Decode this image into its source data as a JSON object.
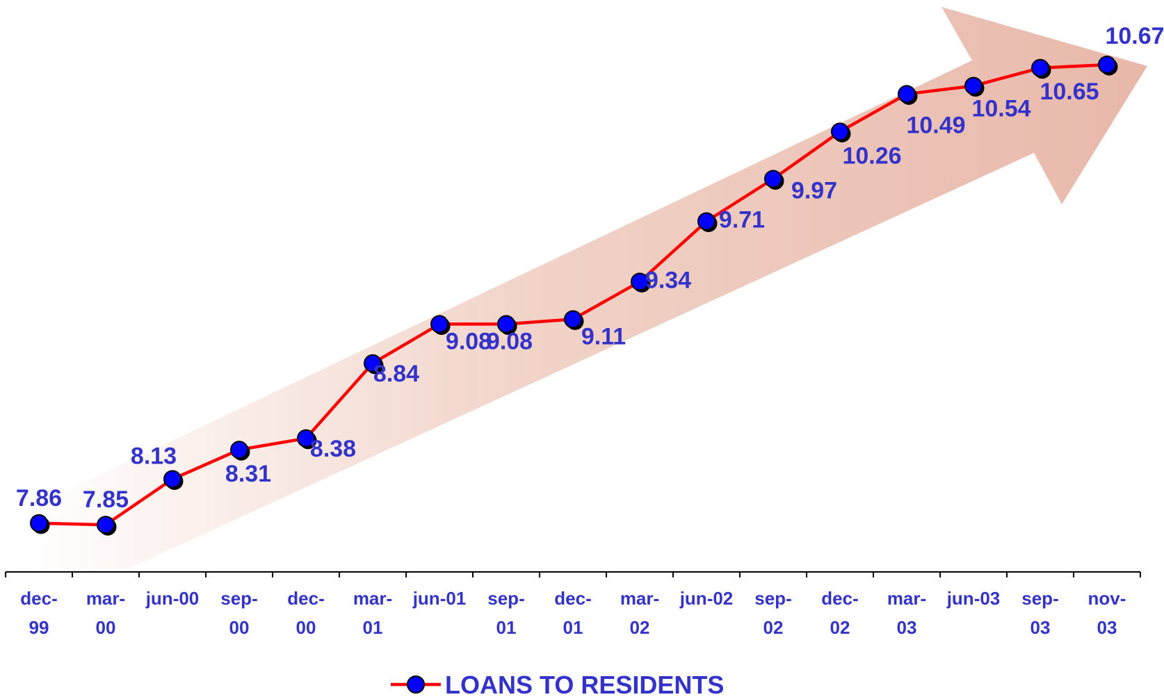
{
  "chart_data": {
    "type": "line",
    "categories": [
      "dec-99",
      "mar-00",
      "jun-00",
      "sep-00",
      "dec-00",
      "mar-01",
      "jun-01",
      "sep-01",
      "dec-01",
      "mar-02",
      "jun-02",
      "sep-02",
      "dec-02",
      "mar-03",
      "jun-03",
      "sep-03",
      "nov-03"
    ],
    "category_lines": [
      [
        "dec-",
        "99"
      ],
      [
        "mar-",
        "00"
      ],
      [
        "jun-00",
        ""
      ],
      [
        "sep-",
        "00"
      ],
      [
        "dec-",
        "00"
      ],
      [
        "mar-",
        "01"
      ],
      [
        "jun-01",
        ""
      ],
      [
        "sep-",
        "01"
      ],
      [
        "dec-",
        "01"
      ],
      [
        "mar-",
        "02"
      ],
      [
        "jun-02",
        ""
      ],
      [
        "sep-",
        "02"
      ],
      [
        "dec-",
        "02"
      ],
      [
        "mar-",
        "03"
      ],
      [
        "jun-03",
        ""
      ],
      [
        "sep-",
        "03"
      ],
      [
        "nov-",
        "03"
      ]
    ],
    "series": [
      {
        "name": "LOANS TO RESIDENTS",
        "values": [
          7.86,
          7.85,
          8.13,
          8.31,
          8.38,
          8.84,
          9.08,
          9.08,
          9.11,
          9.34,
          9.71,
          9.97,
          10.26,
          10.49,
          10.54,
          10.65,
          10.67
        ],
        "labels": [
          "7.86",
          "7.85",
          "8.13",
          "8.31",
          "8.38",
          "8.84",
          "9.08",
          "9.08",
          "9.11",
          "9.34",
          "9.71",
          "9.97",
          "10.26",
          "10.49",
          "10.54",
          "10.65",
          "10.67"
        ]
      }
    ],
    "ylim": [
      7.4,
      11.05
    ],
    "y_axis_visible": false,
    "grid": false,
    "legend_position": "bottom",
    "decoration": "shaded upward trend arrow behind the line",
    "colors": {
      "line": "#ff0000",
      "marker": "#0000ff",
      "labels": "#3333cc",
      "arrow": "#e8b8aa",
      "axis": "#000000"
    }
  }
}
